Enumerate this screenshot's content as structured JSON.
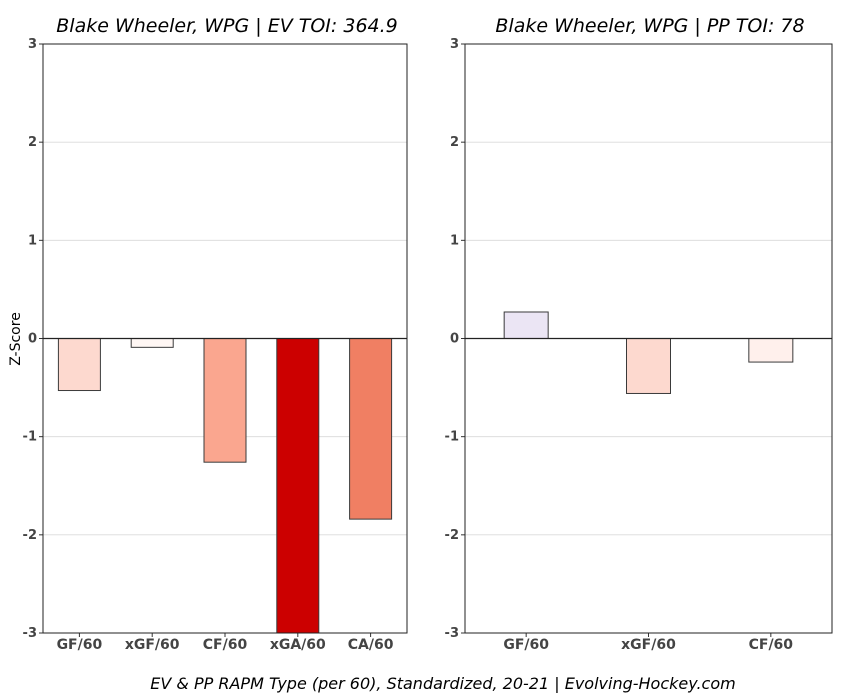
{
  "caption": "EV & PP RAPM Type (per 60), Standardized, 20-21    |    Evolving-Hockey.com",
  "ylabel": "Z-Score",
  "chart_data": [
    {
      "type": "bar",
      "title": "Blake Wheeler, WPG  |  EV TOI: 364.9",
      "categories": [
        "GF/60",
        "xGF/60",
        "CF/60",
        "xGA/60",
        "CA/60"
      ],
      "values": [
        -0.53,
        -0.09,
        -1.26,
        -3.0,
        -1.84
      ],
      "colors": [
        "#fdd9cf",
        "#fff7f4",
        "#faa68f",
        "#cc0000",
        "#f07f63"
      ],
      "ylim": [
        -3,
        3
      ],
      "yticks": [
        3,
        2,
        1,
        0,
        -1,
        -2,
        -3
      ],
      "ylabel": "Z-Score",
      "grid": true
    },
    {
      "type": "bar",
      "title": "Blake Wheeler, WPG  |  PP TOI: 78",
      "categories": [
        "GF/60",
        "xGF/60",
        "CF/60"
      ],
      "values": [
        0.27,
        -0.56,
        -0.24
      ],
      "colors": [
        "#ebe5f4",
        "#fdd9cf",
        "#fff0ec"
      ],
      "ylim": [
        -3,
        3
      ],
      "yticks": [
        3,
        2,
        1,
        0,
        -1,
        -2,
        -3
      ],
      "grid": true
    }
  ]
}
